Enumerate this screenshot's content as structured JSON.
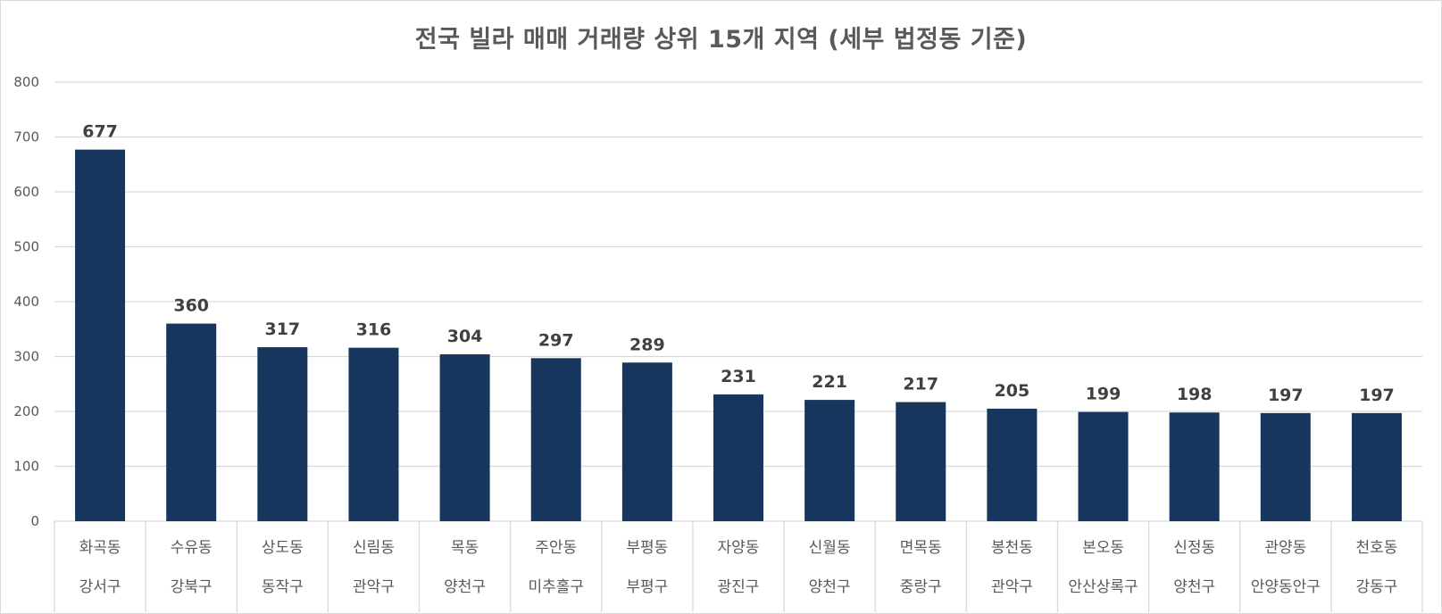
{
  "chart_data": {
    "type": "bar",
    "title": "전국 빌라 매매 거래량 상위 15개 지역 (세부 법정동 기준)",
    "categories": [
      {
        "dong": "화곡동",
        "gu": "강서구"
      },
      {
        "dong": "수유동",
        "gu": "강북구"
      },
      {
        "dong": "상도동",
        "gu": "동작구"
      },
      {
        "dong": "신림동",
        "gu": "관악구"
      },
      {
        "dong": "목동",
        "gu": "양천구"
      },
      {
        "dong": "주안동",
        "gu": "미추홀구"
      },
      {
        "dong": "부평동",
        "gu": "부평구"
      },
      {
        "dong": "자양동",
        "gu": "광진구"
      },
      {
        "dong": "신월동",
        "gu": "양천구"
      },
      {
        "dong": "면목동",
        "gu": "중랑구"
      },
      {
        "dong": "봉천동",
        "gu": "관악구"
      },
      {
        "dong": "본오동",
        "gu": "안산상록구"
      },
      {
        "dong": "신정동",
        "gu": "양천구"
      },
      {
        "dong": "관양동",
        "gu": "안양동안구"
      },
      {
        "dong": "천호동",
        "gu": "강동구"
      }
    ],
    "values": [
      677,
      360,
      317,
      316,
      304,
      297,
      289,
      231,
      221,
      217,
      205,
      199,
      198,
      197,
      197
    ],
    "ylim": [
      0,
      800
    ],
    "yticks": [
      0,
      100,
      200,
      300,
      400,
      500,
      600,
      700,
      800
    ],
    "grid": true,
    "legend": "none",
    "colors": {
      "bar": "#17365d",
      "grid": "#d9d9d9",
      "text": "#595959"
    }
  }
}
